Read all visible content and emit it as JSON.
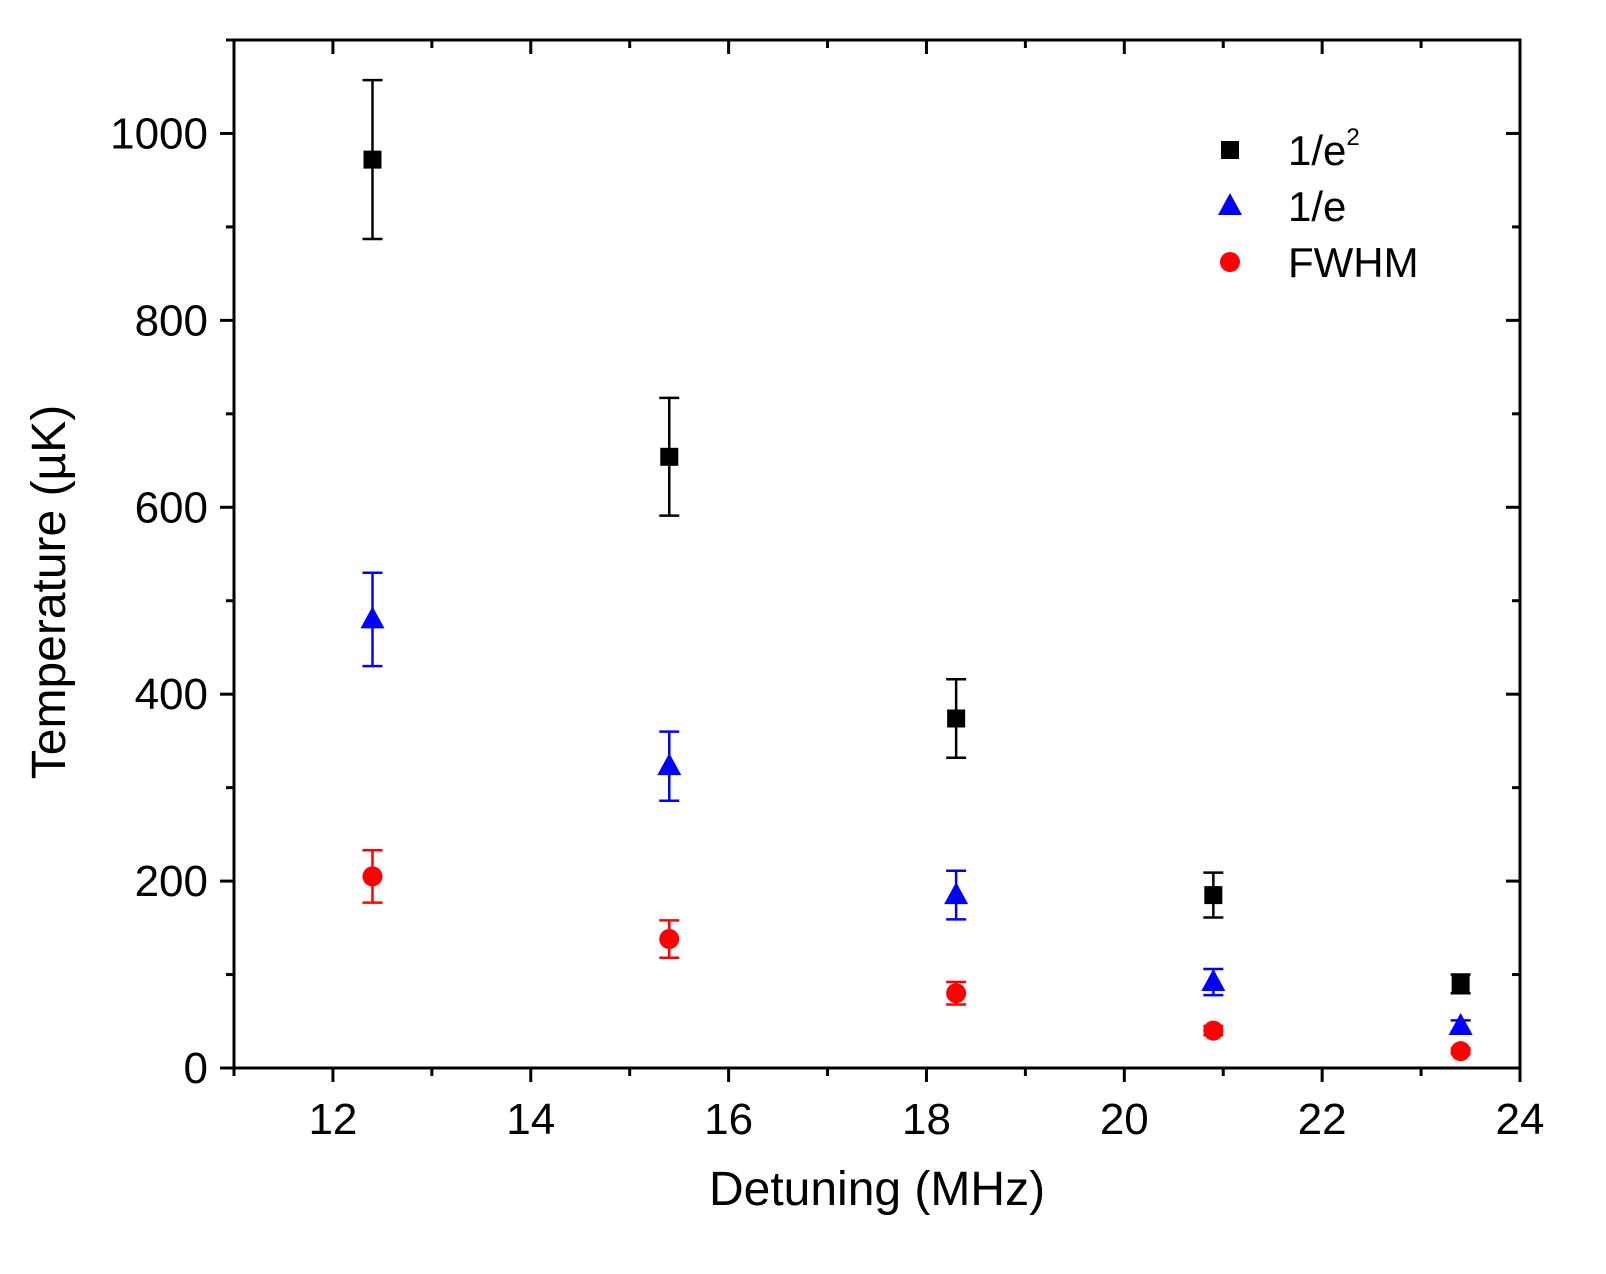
{
  "chart_data": {
    "type": "scatter",
    "title": "",
    "xlabel": "Detuning (MHz)",
    "ylabel": "Temperature (µK)",
    "xlim": [
      11,
      24
    ],
    "ylim": [
      0,
      1100
    ],
    "xticks": [
      12,
      14,
      16,
      18,
      20,
      22,
      24
    ],
    "yticks": [
      0,
      200,
      400,
      600,
      800,
      1000
    ],
    "legend_position": "top-right",
    "series": [
      {
        "name": "1/e",
        "name_sup": "2",
        "marker": "square",
        "color": "#000000",
        "points": [
          {
            "x": 12.4,
            "y": 972,
            "err": 85
          },
          {
            "x": 15.4,
            "y": 654,
            "err": 63
          },
          {
            "x": 18.3,
            "y": 374,
            "err": 42
          },
          {
            "x": 20.9,
            "y": 185,
            "err": 24
          },
          {
            "x": 23.4,
            "y": 90,
            "err": 10
          }
        ]
      },
      {
        "name": "1/e",
        "name_sup": "",
        "marker": "triangle",
        "color": "#0000ff",
        "points": [
          {
            "x": 12.4,
            "y": 480,
            "err": 50
          },
          {
            "x": 15.4,
            "y": 323,
            "err": 37
          },
          {
            "x": 18.3,
            "y": 185,
            "err": 26
          },
          {
            "x": 20.9,
            "y": 92,
            "err": 14
          },
          {
            "x": 23.4,
            "y": 45,
            "err": 6
          }
        ]
      },
      {
        "name": "FWHM",
        "name_sup": "",
        "marker": "circle",
        "color": "#ff0000",
        "points": [
          {
            "x": 12.4,
            "y": 205,
            "err": 28
          },
          {
            "x": 15.4,
            "y": 138,
            "err": 20
          },
          {
            "x": 18.3,
            "y": 80,
            "err": 12
          },
          {
            "x": 20.9,
            "y": 40,
            "err": 5
          },
          {
            "x": 23.4,
            "y": 18,
            "err": 3
          }
        ]
      }
    ]
  }
}
